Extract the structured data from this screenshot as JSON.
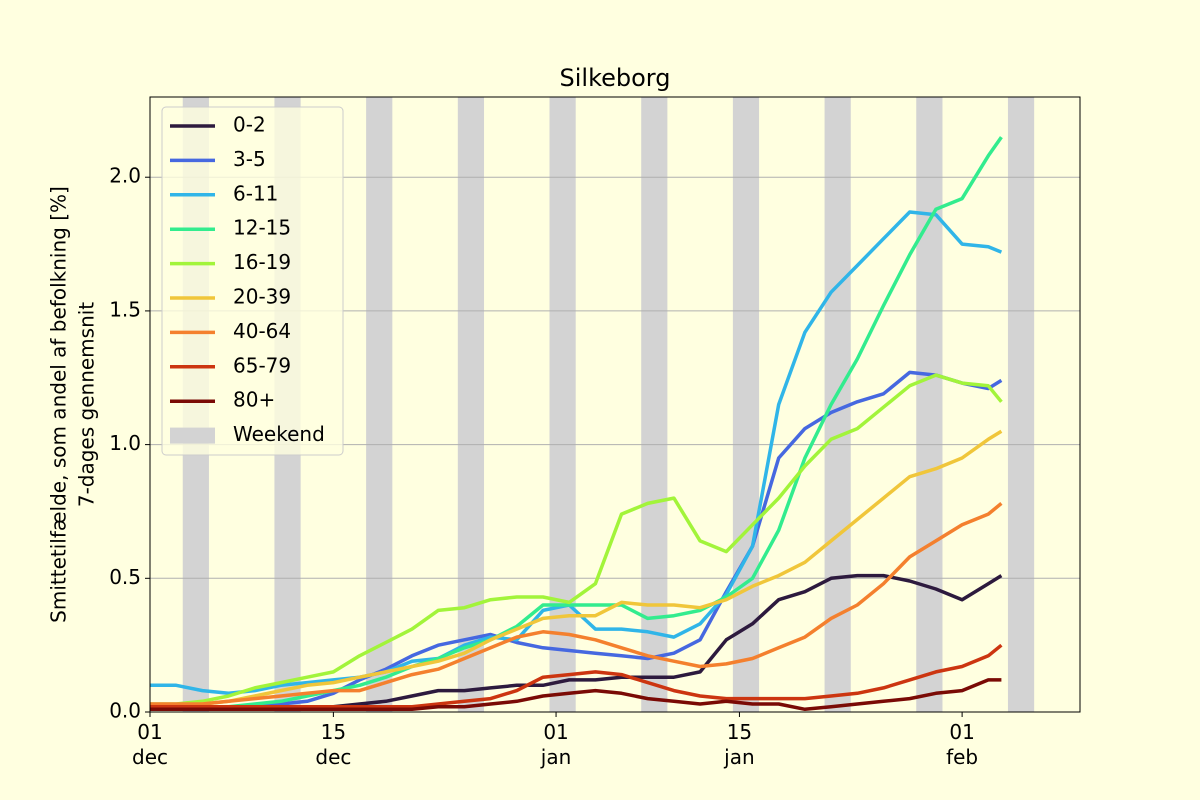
{
  "chart_data": {
    "type": "line",
    "title": "Silkeborg",
    "ylabel": [
      "Smittetilfælde, som andel af befolkning [%]",
      "7-dages gennemsnit"
    ],
    "x": [
      "12-01",
      "12-03",
      "12-05",
      "12-07",
      "12-09",
      "12-11",
      "12-13",
      "12-15",
      "12-17",
      "12-19",
      "12-21",
      "12-23",
      "12-25",
      "12-27",
      "12-29",
      "12-31",
      "01-02",
      "01-04",
      "01-06",
      "01-08",
      "01-10",
      "01-12",
      "01-14",
      "01-16",
      "01-18",
      "01-20",
      "01-22",
      "01-24",
      "01-26",
      "01-28",
      "01-30",
      "02-01",
      "02-03",
      "02-04"
    ],
    "xlim": [
      "12-01",
      "02-10"
    ],
    "xticks": [
      {
        "value": "12-01",
        "label": "01\ndec"
      },
      {
        "value": "12-15",
        "label": "15\ndec"
      },
      {
        "value": "01-01",
        "label": "01\njan"
      },
      {
        "value": "01-15",
        "label": "15\njan"
      },
      {
        "value": "02-01",
        "label": "01\nfeb"
      }
    ],
    "ylim": [
      0,
      2.3
    ],
    "yticks": [
      {
        "value": 0,
        "label": "0.0"
      },
      0.5,
      {
        "value": 1,
        "label": "1.0"
      },
      1.5,
      {
        "value": 2,
        "label": "2.0"
      }
    ],
    "grid": "y",
    "legend": "upper left",
    "weekend": {
      "name": "Weekend",
      "color": "#d3d3d3",
      "spans": [
        [
          "12-04",
          "12-05"
        ],
        [
          "12-11",
          "12-12"
        ],
        [
          "12-18",
          "12-19"
        ],
        [
          "12-25",
          "12-26"
        ],
        [
          "01-01",
          "01-02"
        ],
        [
          "01-08",
          "01-09"
        ],
        [
          "01-15",
          "01-16"
        ],
        [
          "01-22",
          "01-23"
        ],
        [
          "01-29",
          "01-30"
        ],
        [
          "02-05",
          "02-06"
        ]
      ]
    },
    "series": [
      {
        "name": "0-2",
        "color": "#2d1a3e",
        "values": [
          0.01,
          0.01,
          0.01,
          0.01,
          0.01,
          0.01,
          0.02,
          0.02,
          0.03,
          0.04,
          0.06,
          0.08,
          0.08,
          0.09,
          0.1,
          0.1,
          0.12,
          0.12,
          0.13,
          0.13,
          0.13,
          0.15,
          0.27,
          0.33,
          0.42,
          0.45,
          0.5,
          0.51,
          0.51,
          0.49,
          0.46,
          0.42,
          0.48,
          0.51
        ]
      },
      {
        "name": "3-5",
        "color": "#4668e0",
        "values": [
          0.01,
          0.01,
          0.01,
          0.01,
          0.02,
          0.03,
          0.04,
          0.07,
          0.12,
          0.16,
          0.21,
          0.25,
          0.27,
          0.29,
          0.26,
          0.24,
          0.23,
          0.22,
          0.21,
          0.2,
          0.22,
          0.27,
          0.45,
          0.62,
          0.95,
          1.06,
          1.12,
          1.16,
          1.19,
          1.27,
          1.26,
          1.23,
          1.21,
          1.24
        ]
      },
      {
        "name": "6-11",
        "color": "#30b5e8",
        "values": [
          0.1,
          0.1,
          0.08,
          0.07,
          0.08,
          0.1,
          0.11,
          0.12,
          0.13,
          0.15,
          0.19,
          0.2,
          0.25,
          0.28,
          0.27,
          0.38,
          0.4,
          0.31,
          0.31,
          0.3,
          0.28,
          0.33,
          0.44,
          0.62,
          1.15,
          1.42,
          1.57,
          1.67,
          1.77,
          1.87,
          1.86,
          1.75,
          1.74,
          1.72
        ]
      },
      {
        "name": "12-15",
        "color": "#32ec8e",
        "values": [
          0.02,
          0.02,
          0.02,
          0.02,
          0.03,
          0.04,
          0.06,
          0.08,
          0.1,
          0.13,
          0.17,
          0.2,
          0.24,
          0.27,
          0.32,
          0.4,
          0.4,
          0.4,
          0.4,
          0.35,
          0.36,
          0.38,
          0.43,
          0.5,
          0.68,
          0.95,
          1.15,
          1.32,
          1.52,
          1.71,
          1.88,
          1.92,
          2.08,
          2.15
        ]
      },
      {
        "name": "16-19",
        "color": "#a2f43a",
        "values": [
          0.03,
          0.03,
          0.04,
          0.06,
          0.09,
          0.11,
          0.13,
          0.15,
          0.21,
          0.26,
          0.31,
          0.38,
          0.39,
          0.42,
          0.43,
          0.43,
          0.41,
          0.48,
          0.74,
          0.78,
          0.8,
          0.64,
          0.6,
          0.7,
          0.8,
          0.92,
          1.02,
          1.06,
          1.14,
          1.22,
          1.26,
          1.23,
          1.22,
          1.16
        ]
      },
      {
        "name": "20-39",
        "color": "#f0c63a",
        "values": [
          0.02,
          0.02,
          0.03,
          0.04,
          0.06,
          0.08,
          0.1,
          0.11,
          0.13,
          0.15,
          0.17,
          0.19,
          0.22,
          0.27,
          0.31,
          0.35,
          0.36,
          0.36,
          0.41,
          0.4,
          0.4,
          0.39,
          0.42,
          0.47,
          0.51,
          0.56,
          0.64,
          0.72,
          0.8,
          0.88,
          0.91,
          0.95,
          1.02,
          1.05
        ]
      },
      {
        "name": "40-64",
        "color": "#f4802e",
        "values": [
          0.03,
          0.03,
          0.03,
          0.04,
          0.05,
          0.06,
          0.07,
          0.08,
          0.08,
          0.11,
          0.14,
          0.16,
          0.2,
          0.24,
          0.28,
          0.3,
          0.29,
          0.27,
          0.24,
          0.21,
          0.19,
          0.17,
          0.18,
          0.2,
          0.24,
          0.28,
          0.35,
          0.4,
          0.48,
          0.58,
          0.64,
          0.7,
          0.74,
          0.78
        ]
      },
      {
        "name": "65-79",
        "color": "#cc3510",
        "values": [
          0.02,
          0.02,
          0.02,
          0.02,
          0.02,
          0.02,
          0.02,
          0.02,
          0.02,
          0.02,
          0.02,
          0.03,
          0.04,
          0.05,
          0.08,
          0.13,
          0.14,
          0.15,
          0.14,
          0.11,
          0.08,
          0.06,
          0.05,
          0.05,
          0.05,
          0.05,
          0.06,
          0.07,
          0.09,
          0.12,
          0.15,
          0.17,
          0.21,
          0.25
        ]
      },
      {
        "name": "80+",
        "color": "#7a0a05",
        "values": [
          0.01,
          0.01,
          0.01,
          0.01,
          0.01,
          0.01,
          0.01,
          0.01,
          0.01,
          0.01,
          0.01,
          0.02,
          0.02,
          0.03,
          0.04,
          0.06,
          0.07,
          0.08,
          0.07,
          0.05,
          0.04,
          0.03,
          0.04,
          0.03,
          0.03,
          0.01,
          0.02,
          0.03,
          0.04,
          0.05,
          0.07,
          0.08,
          0.12,
          0.12
        ]
      }
    ]
  }
}
